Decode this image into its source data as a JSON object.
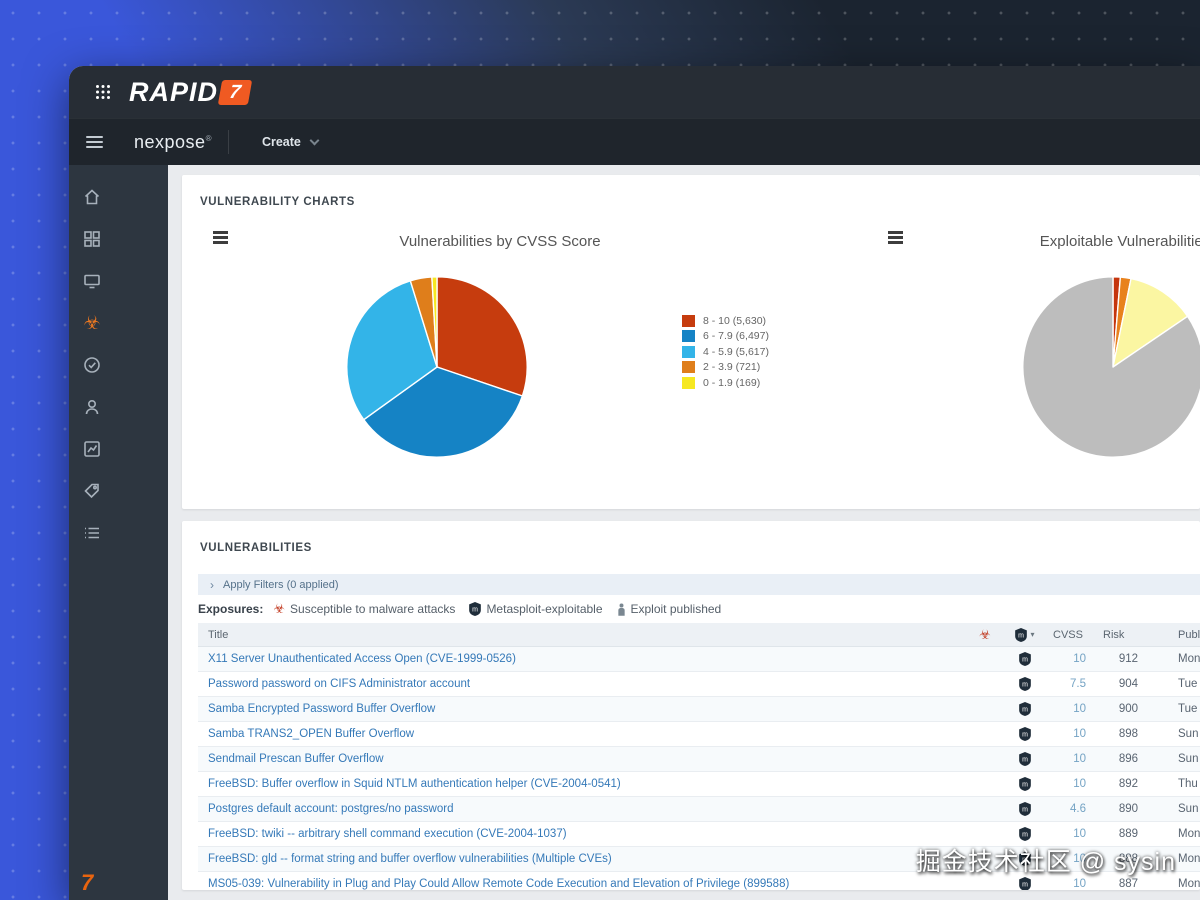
{
  "brand": {
    "logo_text": "RAPID",
    "logo_seven": "7"
  },
  "nav": {
    "product": "nexpose",
    "product_mark": "®",
    "create_label": "Create"
  },
  "sidebar": {
    "items": [
      "home",
      "dashboard",
      "assets",
      "vulnerabilities",
      "policies",
      "users",
      "reports",
      "tickets",
      "administration"
    ],
    "active_item": "vulnerabilities"
  },
  "charts_card": {
    "section_title": "VULNERABILITY CHARTS"
  },
  "chart_data": [
    {
      "type": "pie",
      "title": "Vulnerabilities by CVSS Score",
      "legend_position": "right",
      "slices": [
        {
          "label": "8 - 10 (5,630)",
          "value": 5630,
          "color": "#c63c0e"
        },
        {
          "label": "6 - 7.9 (6,497)",
          "value": 6497,
          "color": "#1583c5"
        },
        {
          "label": "4 - 5.9 (5,617)",
          "value": 5617,
          "color": "#33b4e8"
        },
        {
          "label": "2 - 3.9 (721)",
          "value": 721,
          "color": "#df7e1b"
        },
        {
          "label": "0 - 1.9 (169)",
          "value": 169,
          "color": "#f6e821"
        }
      ]
    },
    {
      "type": "pie",
      "title": "Exploitable Vulnerabilities",
      "note": "chart cut off at right screen edge; slice values estimated from pixels (percent)",
      "slices": [
        {
          "label": "red",
          "value": 1.3,
          "color": "#c5350d"
        },
        {
          "label": "orange",
          "value": 1.9,
          "color": "#e8821d"
        },
        {
          "label": "yellow",
          "value": 12.3,
          "color": "#fbf6a2"
        },
        {
          "label": "gray",
          "value": 84.5,
          "color": "#bdbdbd"
        }
      ]
    }
  ],
  "vulns_card": {
    "section_title": "VULNERABILITIES",
    "filter_bar": {
      "chevron": "›",
      "label": "Apply Filters (0 applied)"
    },
    "exposures": {
      "label": "Exposures:",
      "items": [
        "Susceptible to malware attacks",
        "Metasploit-exploitable",
        "Exploit published"
      ]
    },
    "table": {
      "headers": {
        "title": "Title",
        "cvss": "CVSS",
        "risk": "Risk",
        "published": "Published On"
      },
      "rows": [
        {
          "title": "X11 Server Unauthenticated Access Open (CVE-1999-0526)",
          "cvss": "10",
          "risk": "912",
          "published": "Mon"
        },
        {
          "title": "Password password on CIFS Administrator account",
          "cvss": "7.5",
          "risk": "904",
          "published": "Tue"
        },
        {
          "title": "Samba Encrypted Password Buffer Overflow",
          "cvss": "10",
          "risk": "900",
          "published": "Tue"
        },
        {
          "title": "Samba TRANS2_OPEN Buffer Overflow",
          "cvss": "10",
          "risk": "898",
          "published": "Sun"
        },
        {
          "title": "Sendmail Prescan Buffer Overflow",
          "cvss": "10",
          "risk": "896",
          "published": "Sun"
        },
        {
          "title": "FreeBSD: Buffer overflow in Squid NTLM authentication helper (CVE-2004-0541)",
          "cvss": "10",
          "risk": "892",
          "published": "Thu"
        },
        {
          "title": "Postgres default account: postgres/no password",
          "cvss": "4.6",
          "risk": "890",
          "published": "Sun"
        },
        {
          "title": "FreeBSD: twiki -- arbitrary shell command execution (CVE-2004-1037)",
          "cvss": "10",
          "risk": "889",
          "published": "Mon"
        },
        {
          "title": "FreeBSD: gld -- format string and buffer overflow vulnerabilities (Multiple CVEs)",
          "cvss": "10",
          "risk": "888",
          "published": "Mon"
        },
        {
          "title": "MS05-039: Vulnerability in Plug and Play Could Allow Remote Code Execution and Elevation of Privilege (899588)",
          "cvss": "10",
          "risk": "887",
          "published": "Mon"
        }
      ]
    }
  },
  "watermark": "掘金技术社区 @ sysin"
}
